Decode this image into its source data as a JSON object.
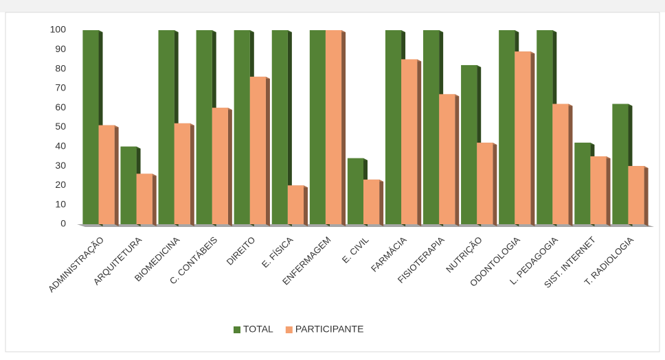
{
  "chart_data": {
    "type": "bar3d",
    "categories": [
      "ADMINISTRAÇÃO",
      "ARQUITETURA",
      "BIOMEDICINA",
      "C. CONTÁBEIS",
      "DIREITO",
      "E. FÍSICA",
      "ENFERMAGEM",
      "E. CIVIL",
      "FARMÁCIA",
      "FISIOTERAPIA",
      "NUTRIÇÃO",
      "ODONTOLOGIA",
      "L. PEDAGOGIA",
      "SIST. INTERNET",
      "T. RADIOLOGIA"
    ],
    "series": [
      {
        "name": "TOTAL",
        "color": "#548235",
        "values": [
          100,
          40,
          100,
          100,
          100,
          100,
          100,
          34,
          100,
          100,
          82,
          100,
          100,
          42,
          62
        ]
      },
      {
        "name": "PARTICIPANTE",
        "color": "#f4a070",
        "values": [
          51,
          26,
          52,
          60,
          76,
          20,
          100,
          23,
          85,
          67,
          42,
          89,
          62,
          35,
          30
        ]
      }
    ],
    "ylim": [
      0,
      100
    ],
    "yticks": [
      0,
      10,
      20,
      30,
      40,
      50,
      60,
      70,
      80,
      90,
      100
    ],
    "legend": "bottom"
  }
}
